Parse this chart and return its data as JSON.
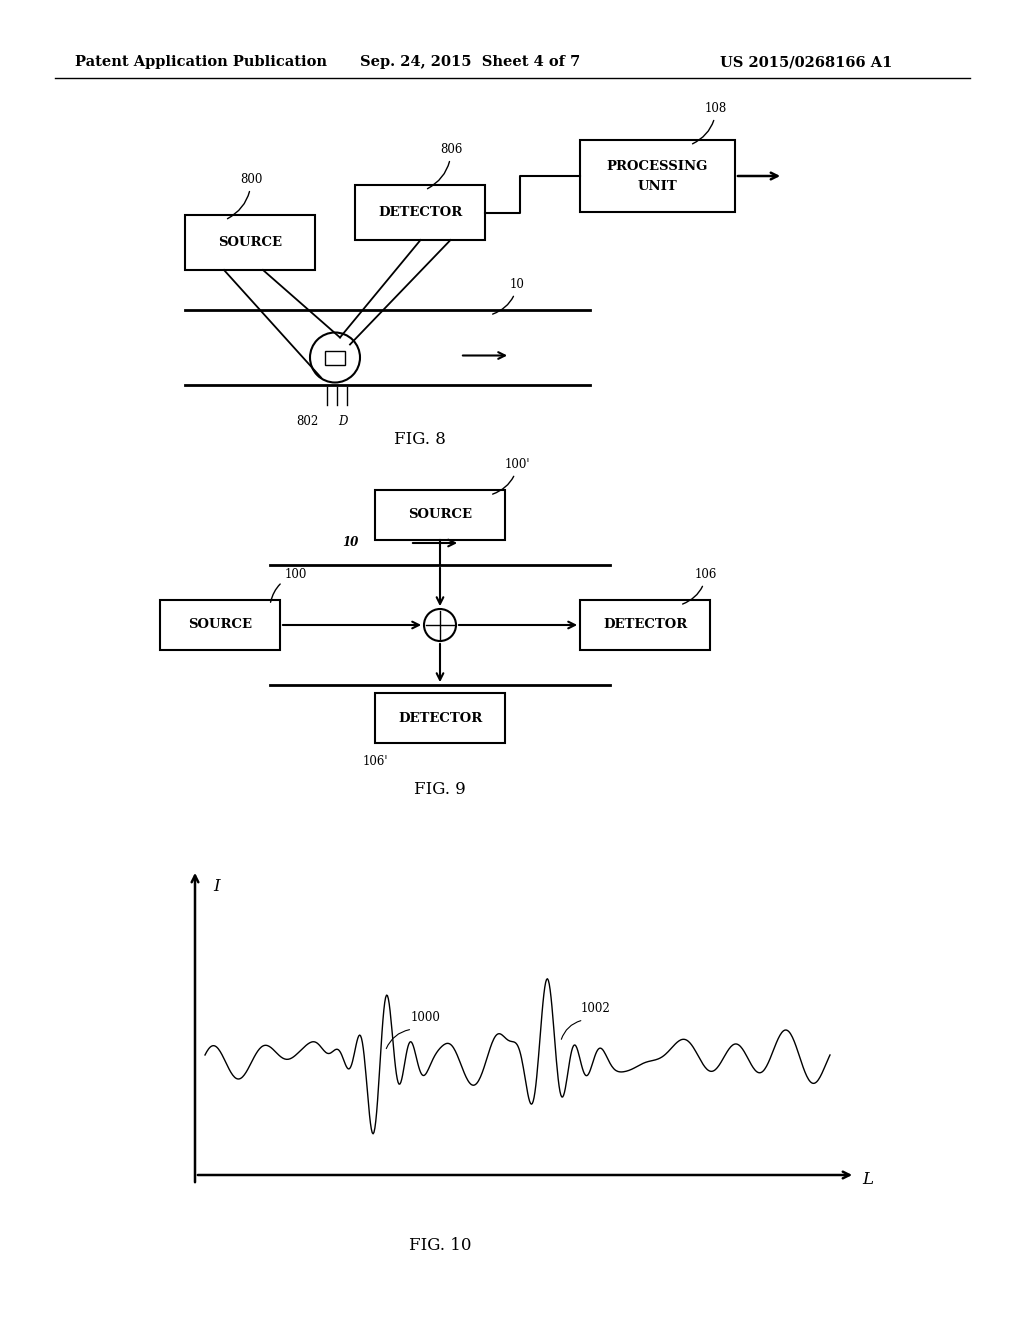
{
  "header_left": "Patent Application Publication",
  "header_mid": "Sep. 24, 2015  Sheet 4 of 7",
  "header_right": "US 2015/0268166 A1",
  "fig8_label": "FIG. 8",
  "fig9_label": "FIG. 9",
  "fig10_label": "FIG. 10",
  "background_color": "#ffffff",
  "box_color": "#000000",
  "line_color": "#000000",
  "font_size_header": 10.5,
  "font_size_label": 11,
  "font_size_box": 9.5,
  "font_size_ref": 8.5
}
